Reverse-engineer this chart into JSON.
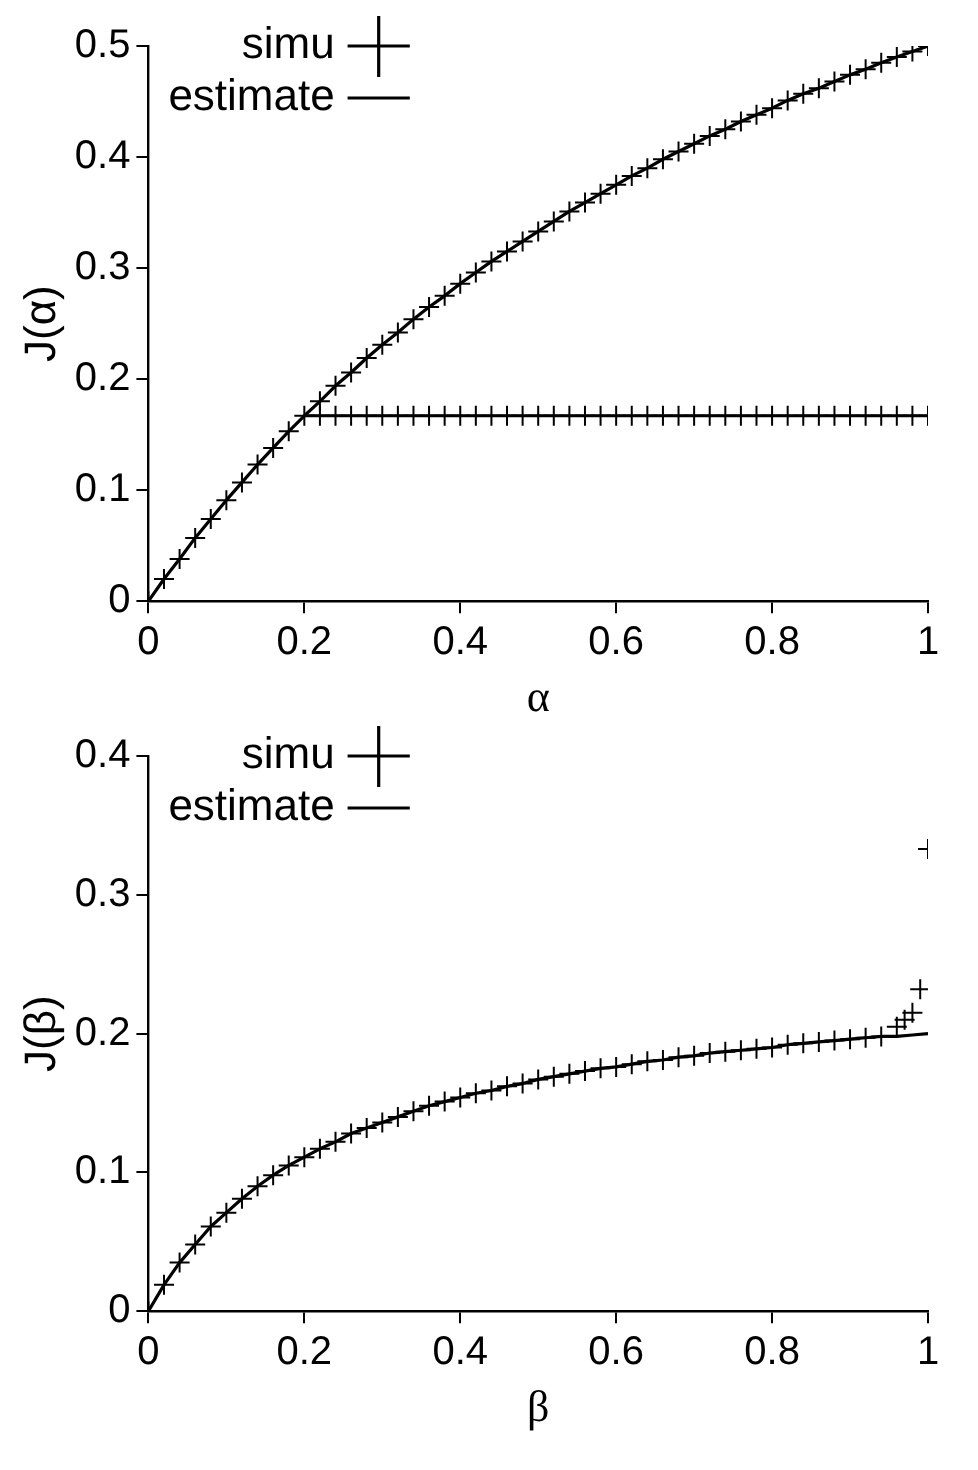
{
  "chart_data": [
    {
      "type": "line",
      "xlabel": "α",
      "ylabel": "J(α)",
      "xlim": [
        0,
        1
      ],
      "ylim": [
        0,
        0.5
      ],
      "xticks": [
        0,
        0.2,
        0.4,
        0.6,
        0.8,
        1
      ],
      "yticks": [
        0,
        0.1,
        0.2,
        0.3,
        0.4,
        0.5
      ],
      "grid": false,
      "legend": "top left",
      "series": [
        {
          "name": "simu",
          "type": "scatter",
          "marker": "cross",
          "color": "#000000",
          "x": [
            0,
            0.02,
            0.04,
            0.06,
            0.08,
            0.1,
            0.12,
            0.14,
            0.16,
            0.18,
            0.2,
            0.22,
            0.24,
            0.26,
            0.28,
            0.3,
            0.32,
            0.34,
            0.36,
            0.38,
            0.4,
            0.42,
            0.44,
            0.46,
            0.48,
            0.5,
            0.52,
            0.54,
            0.56,
            0.58,
            0.6,
            0.62,
            0.64,
            0.66,
            0.68,
            0.7,
            0.72,
            0.74,
            0.76,
            0.78,
            0.8,
            0.82,
            0.84,
            0.86,
            0.88,
            0.9,
            0.92,
            0.94,
            0.96,
            0.98,
            1,
            0.22,
            0.24,
            0.26,
            0.28,
            0.3,
            0.32,
            0.34,
            0.36,
            0.38,
            0.4,
            0.42,
            0.44,
            0.46,
            0.48,
            0.5,
            0.52,
            0.54,
            0.56,
            0.58,
            0.6,
            0.62,
            0.64,
            0.66,
            0.68,
            0.7,
            0.72,
            0.74,
            0.76,
            0.78,
            0.8,
            0.82,
            0.84,
            0.86,
            0.88,
            0.9,
            0.92,
            0.94,
            0.96,
            0.98,
            1
          ],
          "values": [
            0,
            0.02,
            0.038,
            0.057,
            0.074,
            0.091,
            0.107,
            0.123,
            0.138,
            0.153,
            0.167,
            0.18,
            0.194,
            0.206,
            0.219,
            0.231,
            0.242,
            0.254,
            0.265,
            0.275,
            0.286,
            0.296,
            0.306,
            0.315,
            0.324,
            0.333,
            0.342,
            0.351,
            0.359,
            0.367,
            0.375,
            0.383,
            0.39,
            0.398,
            0.405,
            0.412,
            0.419,
            0.425,
            0.432,
            0.438,
            0.444,
            0.451,
            0.457,
            0.462,
            0.468,
            0.474,
            0.479,
            0.485,
            0.49,
            0.495,
            0.5,
            0.167,
            0.167,
            0.167,
            0.167,
            0.167,
            0.167,
            0.167,
            0.167,
            0.167,
            0.167,
            0.167,
            0.167,
            0.167,
            0.167,
            0.167,
            0.167,
            0.167,
            0.167,
            0.167,
            0.167,
            0.167,
            0.167,
            0.167,
            0.167,
            0.167,
            0.167,
            0.167,
            0.167,
            0.167,
            0.167,
            0.167,
            0.167,
            0.167,
            0.167,
            0.167,
            0.167,
            0.167,
            0.167,
            0.167,
            0.167
          ]
        },
        {
          "name": "estimate",
          "type": "line",
          "marker": "none",
          "line_style": "solid",
          "color": "#000000",
          "x": [
            0,
            0.02,
            0.04,
            0.06,
            0.08,
            0.1,
            0.12,
            0.14,
            0.16,
            0.18,
            0.2,
            0.22,
            0.24,
            0.26,
            0.28,
            0.3,
            0.32,
            0.34,
            0.36,
            0.38,
            0.4,
            0.42,
            0.44,
            0.46,
            0.48,
            0.5,
            0.52,
            0.54,
            0.56,
            0.58,
            0.6,
            0.62,
            0.64,
            0.66,
            0.68,
            0.7,
            0.72,
            0.74,
            0.76,
            0.78,
            0.8,
            0.82,
            0.84,
            0.86,
            0.88,
            0.9,
            0.92,
            0.94,
            0.96,
            0.98,
            1
          ],
          "values": [
            0,
            0.02,
            0.038,
            0.057,
            0.074,
            0.091,
            0.107,
            0.123,
            0.138,
            0.153,
            0.167,
            0.18,
            0.194,
            0.206,
            0.219,
            0.231,
            0.242,
            0.254,
            0.265,
            0.275,
            0.286,
            0.296,
            0.306,
            0.315,
            0.324,
            0.333,
            0.342,
            0.351,
            0.359,
            0.367,
            0.375,
            0.383,
            0.39,
            0.398,
            0.405,
            0.412,
            0.419,
            0.425,
            0.432,
            0.438,
            0.444,
            0.451,
            0.457,
            0.462,
            0.468,
            0.474,
            0.479,
            0.485,
            0.49,
            0.495,
            0.5
          ]
        },
        {
          "type": "line",
          "marker": "none",
          "line_style": "solid",
          "color": "#000000",
          "x": [
            0.2,
            1
          ],
          "values": [
            0.167,
            0.167
          ]
        }
      ]
    },
    {
      "type": "line",
      "xlabel": "β",
      "ylabel": "J(β)",
      "xlim": [
        0,
        1
      ],
      "ylim": [
        0,
        0.4
      ],
      "xticks": [
        0,
        0.2,
        0.4,
        0.6,
        0.8,
        1
      ],
      "yticks": [
        0,
        0.1,
        0.2,
        0.3,
        0.4
      ],
      "grid": false,
      "legend": "top left",
      "series": [
        {
          "name": "simu",
          "type": "scatter",
          "marker": "cross",
          "color": "#000000",
          "x": [
            0,
            0.02,
            0.04,
            0.06,
            0.08,
            0.1,
            0.12,
            0.14,
            0.16,
            0.18,
            0.2,
            0.22,
            0.24,
            0.26,
            0.28,
            0.3,
            0.32,
            0.34,
            0.36,
            0.38,
            0.4,
            0.42,
            0.44,
            0.46,
            0.48,
            0.5,
            0.52,
            0.54,
            0.56,
            0.58,
            0.6,
            0.62,
            0.64,
            0.66,
            0.68,
            0.7,
            0.72,
            0.74,
            0.76,
            0.78,
            0.8,
            0.82,
            0.84,
            0.86,
            0.88,
            0.9,
            0.92,
            0.94,
            0.96,
            0.97,
            0.98,
            0.99,
            1
          ],
          "values": [
            0,
            0.019,
            0.035,
            0.048,
            0.061,
            0.071,
            0.081,
            0.09,
            0.098,
            0.105,
            0.111,
            0.117,
            0.122,
            0.128,
            0.132,
            0.136,
            0.14,
            0.144,
            0.148,
            0.151,
            0.154,
            0.157,
            0.159,
            0.162,
            0.164,
            0.167,
            0.169,
            0.171,
            0.173,
            0.175,
            0.176,
            0.178,
            0.18,
            0.181,
            0.183,
            0.184,
            0.186,
            0.187,
            0.188,
            0.189,
            0.19,
            0.192,
            0.193,
            0.194,
            0.195,
            0.196,
            0.197,
            0.198,
            0.205,
            0.21,
            0.215,
            0.232,
            0.333
          ]
        },
        {
          "name": "estimate",
          "type": "line",
          "marker": "none",
          "line_style": "solid",
          "color": "#000000",
          "x": [
            0,
            0.02,
            0.04,
            0.06,
            0.08,
            0.1,
            0.12,
            0.14,
            0.16,
            0.18,
            0.2,
            0.22,
            0.24,
            0.26,
            0.28,
            0.3,
            0.32,
            0.34,
            0.36,
            0.38,
            0.4,
            0.42,
            0.44,
            0.46,
            0.48,
            0.5,
            0.52,
            0.54,
            0.56,
            0.58,
            0.6,
            0.62,
            0.64,
            0.66,
            0.68,
            0.7,
            0.72,
            0.74,
            0.76,
            0.78,
            0.8,
            0.82,
            0.84,
            0.86,
            0.88,
            0.9,
            0.92,
            0.94,
            0.96,
            0.98,
            1
          ],
          "values": [
            0,
            0.019,
            0.035,
            0.048,
            0.061,
            0.071,
            0.081,
            0.09,
            0.098,
            0.105,
            0.111,
            0.117,
            0.122,
            0.128,
            0.132,
            0.136,
            0.14,
            0.144,
            0.148,
            0.151,
            0.154,
            0.157,
            0.159,
            0.162,
            0.164,
            0.167,
            0.169,
            0.171,
            0.173,
            0.175,
            0.176,
            0.178,
            0.18,
            0.181,
            0.183,
            0.184,
            0.186,
            0.187,
            0.188,
            0.189,
            0.19,
            0.192,
            0.193,
            0.194,
            0.195,
            0.196,
            0.197,
            0.198,
            0.198,
            0.199,
            0.2
          ]
        }
      ]
    }
  ]
}
